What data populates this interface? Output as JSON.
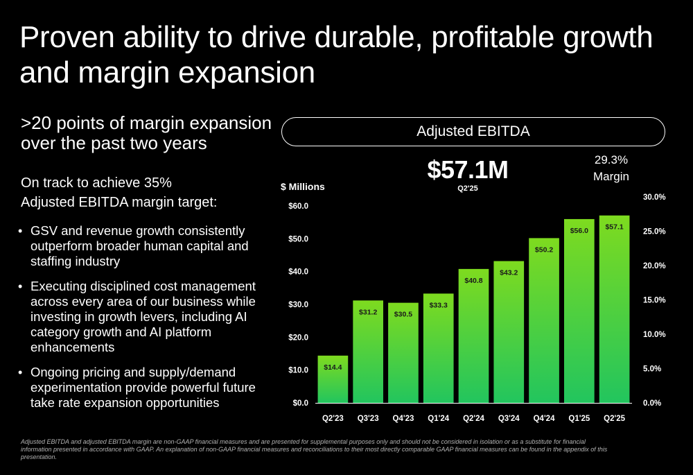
{
  "title": {
    "line1": "Proven ability to drive durable, profitable growth",
    "line2": "and margin expansion"
  },
  "lead": {
    "line1": ">20 points of margin expansion",
    "line2": "over the past two years"
  },
  "target": {
    "line1": "On track to achieve 35%",
    "line2": "Adjusted EBITDA margin target:"
  },
  "bullets": [
    "GSV and revenue growth consistently outperform broader human capital and staffing industry",
    "Executing disciplined cost management across every area of our business while investing in growth levers, including AI category growth and AI platform enhancements",
    "Ongoing pricing and supply/demand experimentation provide powerful future take rate expansion opportunities"
  ],
  "bullet_symbol": "•",
  "footnote": "Adjusted EBITDA and adjusted EBITDA margin are non-GAAP financial measures and are presented for supplemental purposes only and should not be considered in isolation or as a substitute for financial information presented in accordance with GAAP. An explanation of non-GAAP financial measures and reconciliations to their most directly comparable GAAP financial measures can be found in the appendix of this presentation.",
  "chart_header": {
    "pill_label": "Adjusted EBITDA",
    "headline_value": "$57.1M",
    "headline_period": "Q2'25",
    "margin_value": "29.3%",
    "margin_label": "Margin"
  },
  "chart_data": {
    "type": "bar",
    "title": "Adjusted EBITDA",
    "ylabel": "$ Millions",
    "categories": [
      "Q2'23",
      "Q3'23",
      "Q4'23",
      "Q1'24",
      "Q2'24",
      "Q3'24",
      "Q4'24",
      "Q1'25",
      "Q2'25"
    ],
    "series": [
      {
        "values": [
          14.4,
          31.2,
          30.5,
          33.3,
          40.8,
          43.2,
          50.2,
          56.0,
          57.1
        ]
      }
    ],
    "data_labels": [
      "$14.4",
      "$31.2",
      "$30.5",
      "$33.3",
      "$40.8",
      "$43.2",
      "$50.2",
      "$56.0",
      "$57.1"
    ],
    "ylim": [
      0,
      60
    ],
    "y_ticks": [
      "$0.0",
      "$10.0",
      "$20.0",
      "$30.0",
      "$40.0",
      "$50.0",
      "$60.0"
    ],
    "y2lim": [
      0,
      30
    ],
    "y2_ticks": [
      "0.0%",
      "5.0%",
      "10.0%",
      "15.0%",
      "20.0%",
      "25.0%",
      "30.0%"
    ],
    "grid": false,
    "colors": {
      "bar_top": "#7edb1f",
      "bar_bottom": "#22c55e",
      "baseline": "#ffffff"
    }
  }
}
